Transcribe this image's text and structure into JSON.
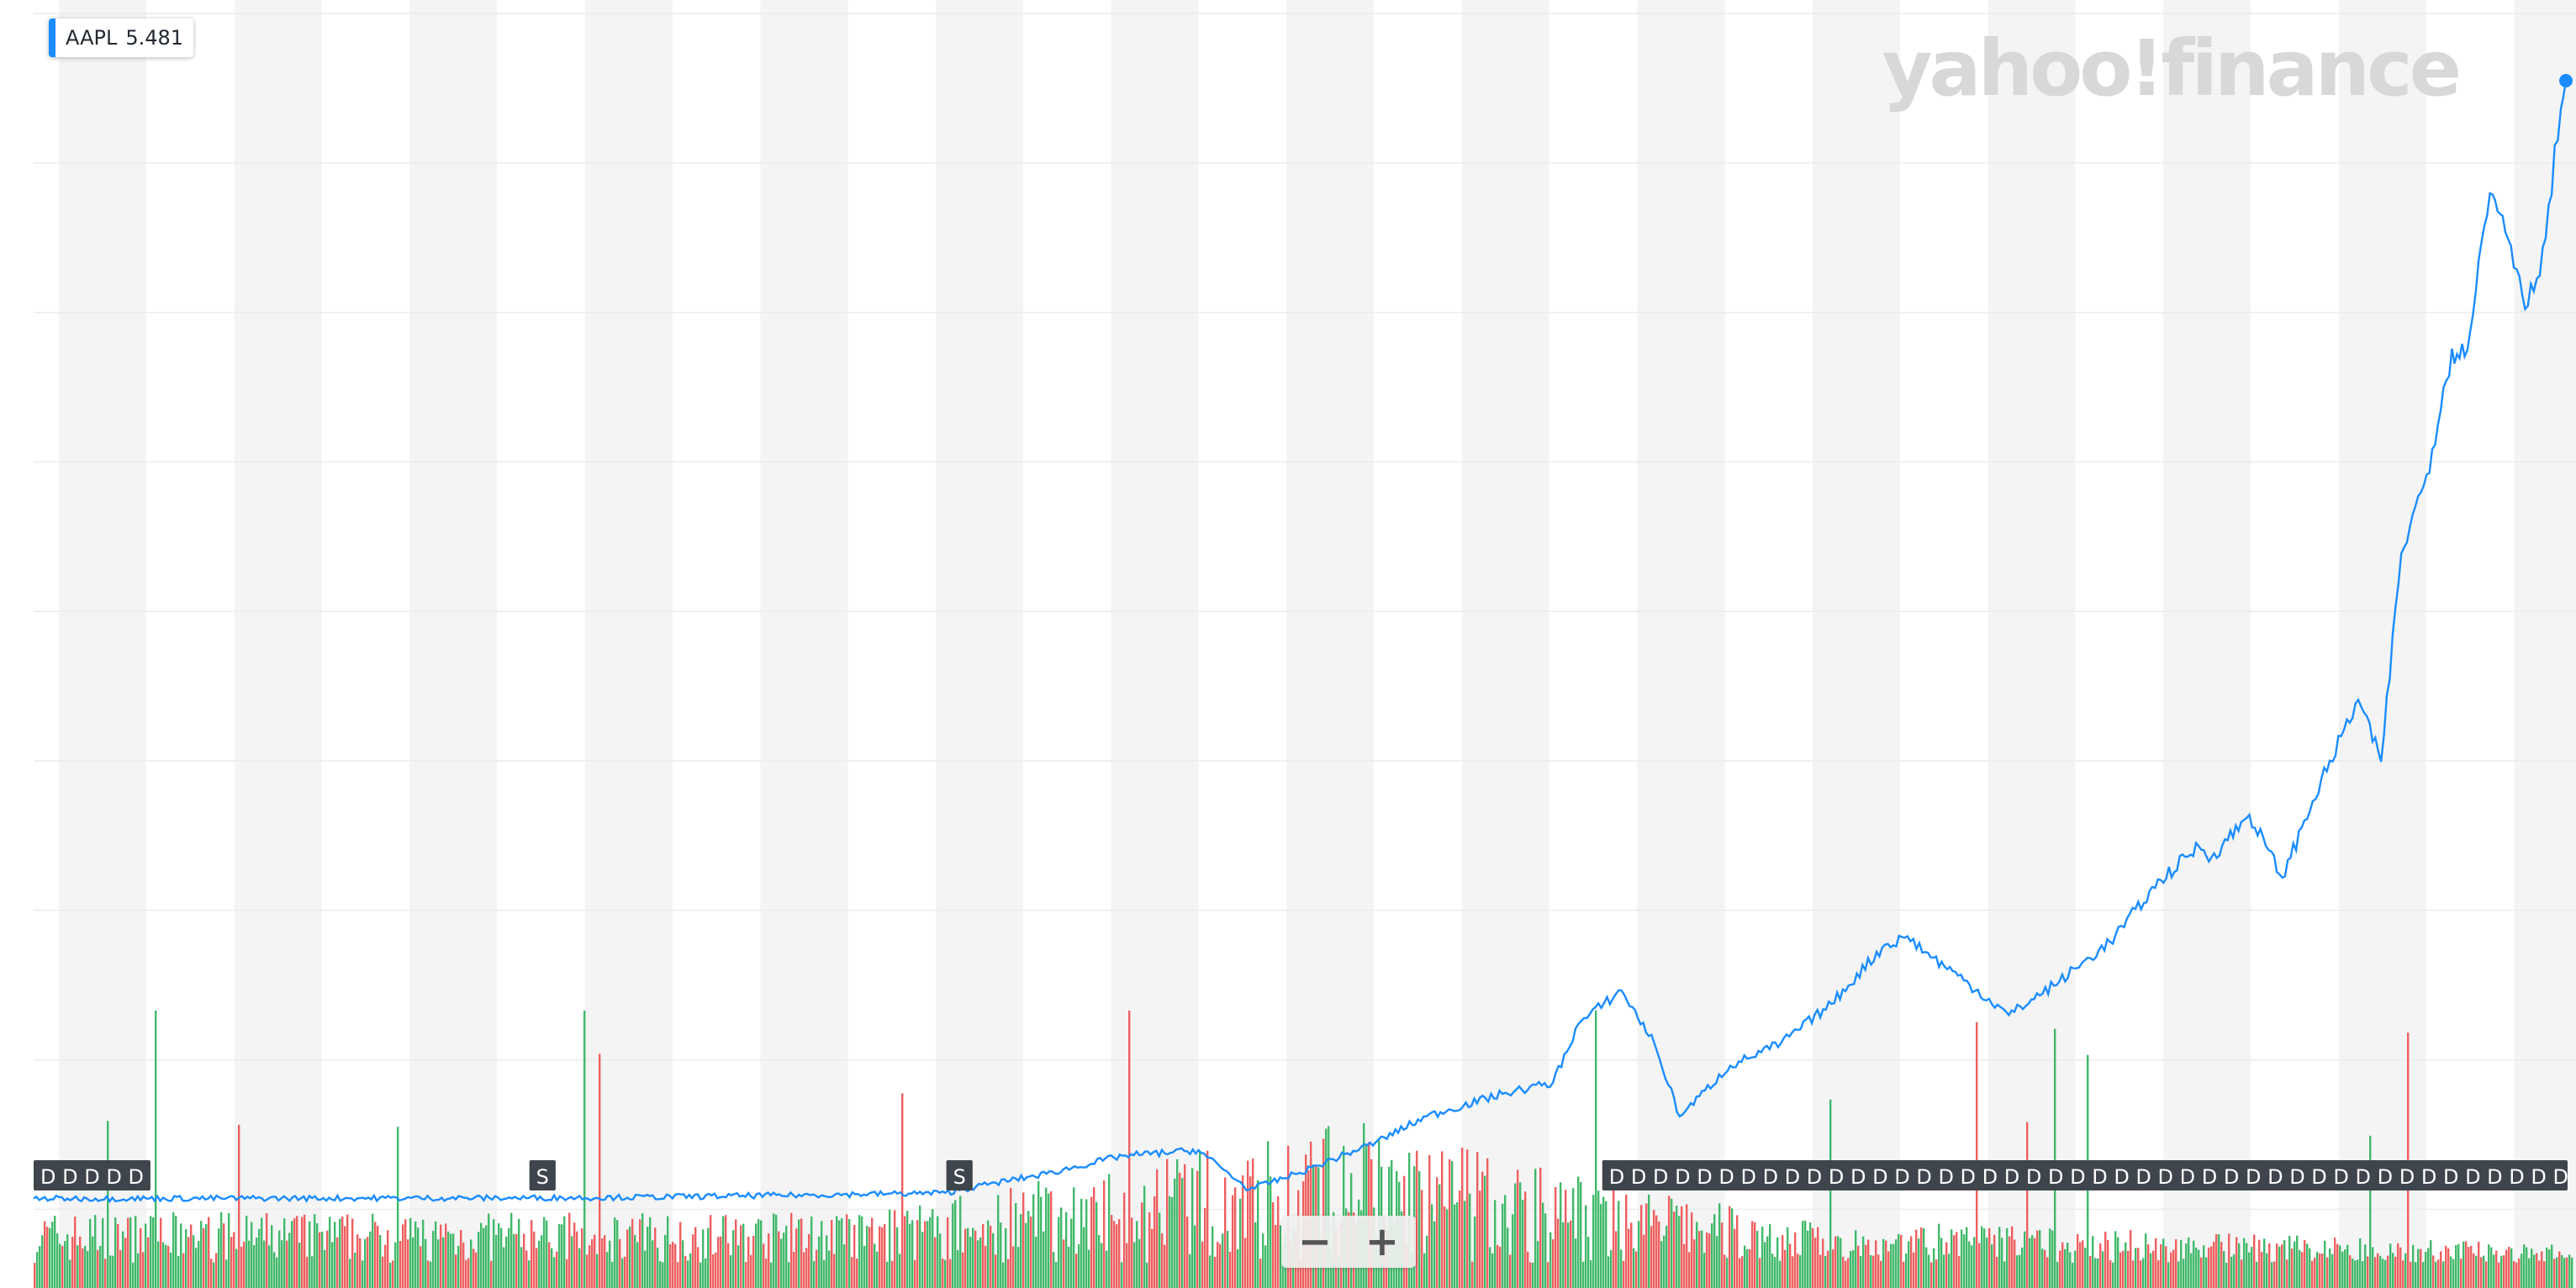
{
  "legend": {
    "symbol": "AAPL",
    "value": "5.481",
    "color": "#1a8cff"
  },
  "watermark": "yahoo!finance",
  "zoom": {
    "out_label": "−",
    "in_label": "+"
  },
  "colors": {
    "line": "#1a8cff",
    "volume_up": "#41b96a",
    "volume_down": "#ef5f5f",
    "band": "#f4f4f5",
    "gridline": "#ececec",
    "event_marker_bg": "#3f454c",
    "event_marker_text": "#ffffff"
  },
  "chart_data": {
    "type": "line",
    "symbol": "AAPL",
    "value_scale": "linear",
    "grid": true,
    "line_points": [
      [
        0.0,
        0.007
      ],
      [
        0.18,
        0.0075
      ],
      [
        0.23,
        0.008
      ],
      [
        0.3,
        0.01
      ],
      [
        0.36,
        0.012
      ],
      [
        0.38,
        0.021
      ],
      [
        0.4,
        0.029
      ],
      [
        0.43,
        0.045
      ],
      [
        0.46,
        0.05
      ],
      [
        0.48,
        0.015
      ],
      [
        0.5,
        0.03
      ],
      [
        0.53,
        0.057
      ],
      [
        0.55,
        0.08
      ],
      [
        0.58,
        0.1
      ],
      [
        0.6,
        0.11
      ],
      [
        0.61,
        0.162
      ],
      [
        0.627,
        0.192
      ],
      [
        0.64,
        0.145
      ],
      [
        0.65,
        0.08
      ],
      [
        0.67,
        0.125
      ],
      [
        0.69,
        0.145
      ],
      [
        0.71,
        0.18
      ],
      [
        0.73,
        0.23
      ],
      [
        0.74,
        0.24
      ],
      [
        0.747,
        0.226
      ],
      [
        0.76,
        0.205
      ],
      [
        0.78,
        0.17
      ],
      [
        0.8,
        0.2
      ],
      [
        0.82,
        0.235
      ],
      [
        0.84,
        0.29
      ],
      [
        0.855,
        0.32
      ],
      [
        0.86,
        0.31
      ],
      [
        0.875,
        0.348
      ],
      [
        0.888,
        0.292
      ],
      [
        0.9,
        0.36
      ],
      [
        0.918,
        0.45
      ],
      [
        0.927,
        0.395
      ],
      [
        0.935,
        0.58
      ],
      [
        0.945,
        0.65
      ],
      [
        0.955,
        0.762
      ],
      [
        0.96,
        0.755
      ],
      [
        0.97,
        0.9
      ],
      [
        0.975,
        0.88
      ],
      [
        0.985,
        0.8
      ],
      [
        0.992,
        0.86
      ],
      [
        0.998,
        0.975
      ],
      [
        1.0,
        1.0
      ]
    ],
    "volume_seed": 7,
    "event_markers": [
      {
        "label": "D D D D D",
        "position": 0.0
      },
      {
        "label": "S",
        "position": 0.195
      },
      {
        "label": "S",
        "position": 0.359
      },
      {
        "label": "D D D D D D D D D D D D D D D D D D D D D D D D D D D D D D D D D D D D D D D D D D D D D D",
        "position": 0.617
      }
    ]
  }
}
